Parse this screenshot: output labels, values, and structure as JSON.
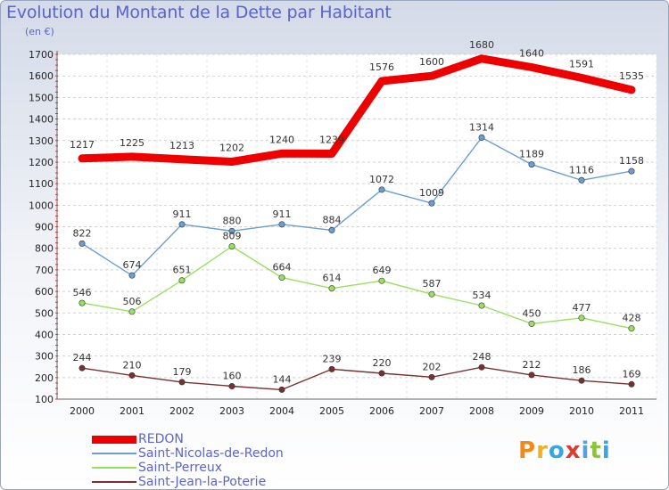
{
  "title": "Evolution du Montant de la Dette par Habitant",
  "unit": "(en €)",
  "logo": "Proxiti",
  "chart_data": {
    "type": "line",
    "title": "Evolution du Montant de la Dette par Habitant",
    "ylabel": "(en €)",
    "ylim": [
      100,
      1700
    ],
    "yticks": [
      100,
      200,
      300,
      400,
      500,
      600,
      700,
      800,
      900,
      1000,
      1100,
      1200,
      1300,
      1400,
      1500,
      1600,
      1700
    ],
    "grid": true,
    "legend_position": "bottom-left",
    "x": [
      "2000",
      "2001",
      "2002",
      "2003",
      "2004",
      "2005",
      "2006",
      "2007",
      "2008",
      "2009",
      "2010",
      "2011"
    ],
    "series": [
      {
        "name": "REDON",
        "color": "#ee0000",
        "values": [
          1217,
          1225,
          1213,
          1202,
          1240,
          1239,
          1576,
          1600,
          1680,
          1640,
          1591,
          1535
        ]
      },
      {
        "name": "Saint-Nicolas-de-Redon",
        "color": "#6a9fd4",
        "values": [
          822,
          674,
          911,
          880,
          911,
          884,
          1072,
          1009,
          1314,
          1189,
          1116,
          1158
        ]
      },
      {
        "name": "Saint-Perreux",
        "color": "#98e060",
        "values": [
          546,
          506,
          651,
          809,
          664,
          614,
          649,
          587,
          534,
          450,
          477,
          428
        ]
      },
      {
        "name": "Saint-Jean-la-Poterie",
        "color": "#7a3030",
        "values": [
          244,
          210,
          179,
          160,
          144,
          239,
          220,
          202,
          248,
          212,
          186,
          169
        ]
      }
    ],
    "data_labels": [
      [
        "1217",
        "1225",
        "1213",
        "1202",
        "1240",
        "1239",
        "1576",
        "1600",
        "1680",
        "1640",
        "1591",
        "1535"
      ],
      [
        "822",
        "674",
        "911",
        "880",
        "911",
        "884",
        "1072",
        "1009",
        "1314",
        "1189",
        "1116",
        "1158"
      ],
      [
        "546",
        "506",
        "651",
        "809",
        "664",
        "614",
        "649",
        "587",
        "534",
        "450",
        "477",
        "428"
      ],
      [
        "244",
        "210",
        "179",
        "160",
        "144",
        "239",
        "220",
        "202",
        "248",
        "212",
        "186",
        "169"
      ]
    ]
  }
}
